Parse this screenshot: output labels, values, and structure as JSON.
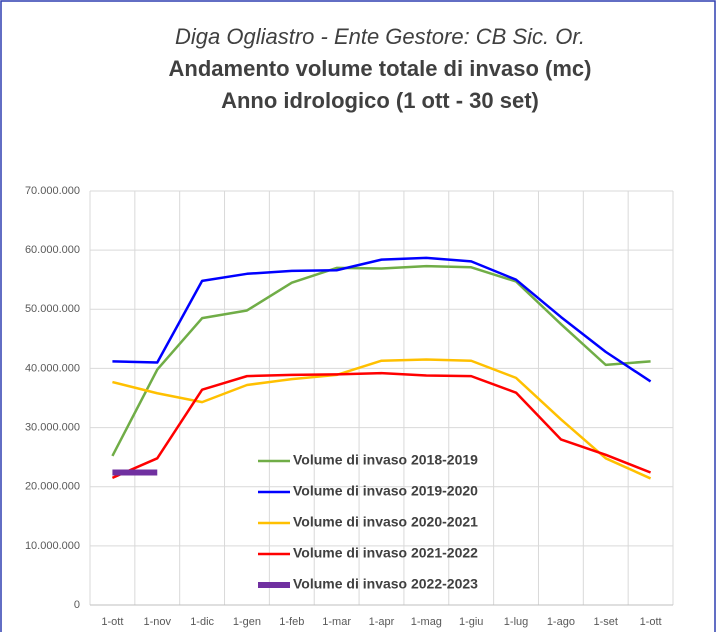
{
  "chart_data": {
    "type": "line",
    "title": "Diga Ogliastro - Ente Gestore: CB Sic. Or.",
    "subtitle": [
      "Andamento volume totale di invaso (mc)",
      "Anno idrologico (1 ott - 30 set)"
    ],
    "categories": [
      "1-ott",
      "1-nov",
      "1-dic",
      "1-gen",
      "1-feb",
      "1-mar",
      "1-apr",
      "1-mag",
      "1-giu",
      "1-lug",
      "1-ago",
      "1-set",
      "1-ott"
    ],
    "ylim": [
      0,
      70000000
    ],
    "yticks": [
      0,
      {
        "value": 10000000,
        "label": "10.000.000"
      },
      {
        "value": 20000000,
        "label": "20.000.000"
      },
      {
        "value": 30000000,
        "label": "30.000.000"
      },
      {
        "value": 40000000,
        "label": "40.000.000"
      },
      {
        "value": 50000000,
        "label": "50.000.000"
      },
      {
        "value": 60000000,
        "label": "60.000.000"
      },
      {
        "value": 70000000,
        "label": "70.000.000"
      }
    ],
    "grid": true,
    "series": [
      {
        "name": "Volume di invaso 2018-2019",
        "color": "#70ad47",
        "values": [
          25200000,
          39800000,
          48500000,
          49800000,
          54500000,
          57000000,
          56900000,
          57300000,
          57100000,
          54700000,
          47500000,
          40600000,
          41200000
        ]
      },
      {
        "name": "Volume di invaso 2019-2020",
        "color": "#0000ff",
        "values": [
          41200000,
          41000000,
          54800000,
          56000000,
          56500000,
          56600000,
          58400000,
          58700000,
          58100000,
          55000000,
          48700000,
          42800000,
          37800000
        ]
      },
      {
        "name": "Volume di invaso 2020-2021",
        "color": "#ffc000",
        "values": [
          37700000,
          35800000,
          34300000,
          37200000,
          38200000,
          38900000,
          41300000,
          41500000,
          41300000,
          38400000,
          31400000,
          24800000,
          21400000
        ]
      },
      {
        "name": "Volume di invaso 2021-2022",
        "color": "#ff0000",
        "values": [
          21500000,
          24800000,
          36400000,
          38700000,
          38900000,
          39000000,
          39200000,
          38800000,
          38700000,
          35900000,
          28000000,
          25400000,
          22400000
        ]
      },
      {
        "name": "Volume di invaso 2022-2023",
        "color": "#7030a0",
        "values": [
          22400000,
          22400000,
          null,
          null,
          null,
          null,
          null,
          null,
          null,
          null,
          null,
          null,
          null
        ]
      }
    ]
  }
}
